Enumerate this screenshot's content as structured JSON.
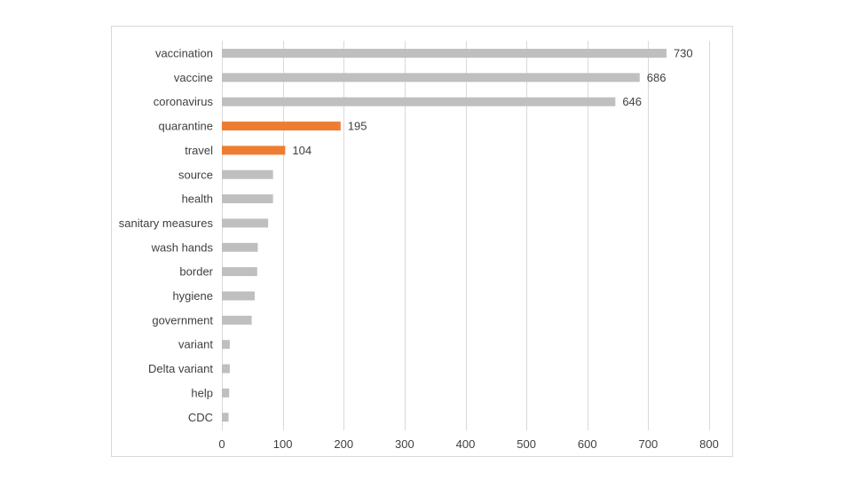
{
  "chart_data": {
    "type": "bar",
    "orientation": "horizontal",
    "categories": [
      "vaccination",
      "vaccine",
      "coronavirus",
      "quarantine",
      "travel",
      "source",
      "health",
      "sanitary measures",
      "wash hands",
      "border",
      "hygiene",
      "government",
      "variant",
      "Delta variant",
      "help",
      "CDC"
    ],
    "values": [
      730,
      686,
      646,
      195,
      104,
      84,
      84,
      76,
      59,
      58,
      54,
      49,
      13,
      13,
      12,
      11
    ],
    "data_labels": [
      "730",
      "686",
      "646",
      "195",
      "104",
      "",
      "",
      "",
      "",
      "",
      "",
      "",
      "",
      "",
      "",
      ""
    ],
    "highlight": [
      false,
      false,
      false,
      true,
      true,
      false,
      false,
      false,
      false,
      false,
      false,
      false,
      false,
      false,
      false,
      false
    ],
    "xlim": [
      0,
      800
    ],
    "x_ticks": [
      0,
      100,
      200,
      300,
      400,
      500,
      600,
      700,
      800
    ],
    "grid": true,
    "legend": "none",
    "title": "",
    "xlabel": "",
    "ylabel": "",
    "colors": {
      "default_bar": "#bfbfbf",
      "highlight_bar": "#ed7d31",
      "grid": "#d9d9d9",
      "text": "#404040"
    }
  }
}
